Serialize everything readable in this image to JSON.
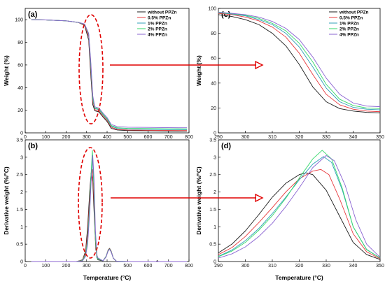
{
  "figure": {
    "x_axis_title_left": "Temperature (°C)",
    "x_axis_title_right": "Temperature (°C)"
  },
  "series_styles": [
    {
      "name": "without PPZn",
      "color": "#1a1a1a"
    },
    {
      "name": "0.5% PPZn",
      "color": "#e8383d"
    },
    {
      "name": "1% PPZn",
      "color": "#2f9fb8"
    },
    {
      "name": "2% PPZn",
      "color": "#33d96a"
    },
    {
      "name": "4% PPZn",
      "color": "#8a63d2"
    }
  ],
  "annotations": {
    "ellipse_color": "#e00000",
    "arrow_color": "#e00000"
  },
  "chart_data": [
    {
      "panel": "(a)",
      "type": "line",
      "title": "",
      "xlabel": "",
      "ylabel": "Weight (%)",
      "xlim": [
        0,
        800
      ],
      "ylim": [
        0,
        110
      ],
      "xticks": [
        0,
        100,
        200,
        300,
        400,
        500,
        600,
        700,
        800
      ],
      "yticks": [
        0,
        20,
        40,
        60,
        80,
        100
      ],
      "legend": "top-right",
      "series": [
        {
          "name": "without PPZn",
          "x": [
            30,
            100,
            200,
            260,
            290,
            310,
            320,
            330,
            340,
            360,
            380,
            400,
            420,
            450,
            500,
            600,
            700,
            790
          ],
          "y": [
            100,
            99.8,
            99,
            97.5,
            95,
            82,
            52,
            25,
            19.5,
            18.5,
            14,
            10,
            4,
            2.5,
            2,
            1.8,
            1.6,
            1.5
          ]
        },
        {
          "name": "0.5% PPZn",
          "x": [
            30,
            100,
            200,
            260,
            290,
            310,
            320,
            330,
            340,
            360,
            380,
            400,
            420,
            450,
            500,
            600,
            700,
            790
          ],
          "y": [
            100,
            99.8,
            99,
            97.5,
            95.5,
            85,
            57,
            28,
            20.5,
            19.5,
            15,
            11,
            5,
            3,
            2.5,
            2.3,
            2.1,
            2
          ]
        },
        {
          "name": "1% PPZn",
          "x": [
            30,
            100,
            200,
            260,
            290,
            310,
            320,
            330,
            340,
            360,
            380,
            400,
            420,
            450,
            500,
            600,
            700,
            790
          ],
          "y": [
            100,
            99.8,
            99,
            97.6,
            96,
            87,
            60,
            30,
            21.5,
            20.5,
            16,
            12,
            6,
            3.8,
            3.3,
            3.1,
            3,
            2.9
          ]
        },
        {
          "name": "2% PPZn",
          "x": [
            30,
            100,
            200,
            260,
            290,
            310,
            320,
            330,
            340,
            360,
            380,
            400,
            420,
            450,
            500,
            600,
            700,
            790
          ],
          "y": [
            100,
            99.8,
            99,
            97.6,
            96,
            87.5,
            62,
            31,
            22,
            21,
            16.5,
            12.5,
            6.5,
            4.5,
            4,
            3.8,
            3.6,
            3.5
          ]
        },
        {
          "name": "4% PPZn",
          "x": [
            30,
            100,
            200,
            260,
            290,
            310,
            320,
            330,
            340,
            360,
            380,
            400,
            420,
            450,
            500,
            600,
            700,
            790
          ],
          "y": [
            100,
            99.8,
            99,
            97.7,
            96.2,
            88,
            64,
            33,
            23,
            22,
            17.5,
            13.5,
            7.5,
            5.5,
            5,
            4.8,
            4.6,
            4.5
          ]
        }
      ]
    },
    {
      "panel": "(c)",
      "type": "line",
      "title": "",
      "xlabel": "",
      "ylabel": "Weight (%)",
      "xlim": [
        290,
        350
      ],
      "ylim": [
        0,
        100
      ],
      "xticks": [
        290,
        300,
        310,
        320,
        330,
        340,
        350
      ],
      "yticks": [
        0,
        20,
        40,
        60,
        80,
        100
      ],
      "legend": "top-right",
      "series": [
        {
          "name": "without PPZn",
          "x": [
            290,
            295,
            300,
            305,
            310,
            315,
            320,
            325,
            330,
            335,
            340,
            345,
            350
          ],
          "y": [
            95,
            93.5,
            91,
            87,
            80,
            70,
            55,
            37,
            25,
            19.5,
            17.5,
            16.5,
            16
          ]
        },
        {
          "name": "0.5% PPZn",
          "x": [
            290,
            295,
            300,
            305,
            310,
            315,
            320,
            325,
            330,
            335,
            340,
            345,
            350
          ],
          "y": [
            96,
            95,
            93,
            90,
            85,
            77,
            64,
            47,
            31,
            22.5,
            19,
            17.5,
            17
          ]
        },
        {
          "name": "1% PPZn",
          "x": [
            290,
            295,
            300,
            305,
            310,
            315,
            320,
            325,
            330,
            335,
            340,
            345,
            350
          ],
          "y": [
            96.5,
            95.5,
            94,
            91,
            87,
            80,
            69,
            53,
            36,
            25,
            20.5,
            19,
            18.5
          ]
        },
        {
          "name": "2% PPZn",
          "x": [
            290,
            295,
            300,
            305,
            310,
            315,
            320,
            325,
            330,
            335,
            340,
            345,
            350
          ],
          "y": [
            96.5,
            95.8,
            94.5,
            92,
            88,
            82,
            72,
            57,
            39,
            27,
            22,
            20,
            19.5
          ]
        },
        {
          "name": "4% PPZn",
          "x": [
            290,
            295,
            300,
            305,
            310,
            315,
            320,
            325,
            330,
            335,
            340,
            345,
            350
          ],
          "y": [
            97,
            96,
            95,
            93,
            89.5,
            84,
            75,
            61,
            44,
            31,
            24,
            21.5,
            21
          ]
        }
      ]
    },
    {
      "panel": "(b)",
      "type": "line",
      "title": "",
      "xlabel": "Temperature (°C)",
      "ylabel": "Derivative weight (%/°C)",
      "xlim": [
        0,
        800
      ],
      "ylim": [
        0,
        3.5
      ],
      "xticks": [
        0,
        100,
        200,
        300,
        400,
        500,
        600,
        700,
        800
      ],
      "yticks": [
        0,
        0.5,
        1,
        1.5,
        2,
        2.5,
        3,
        3.5
      ],
      "legend": "none",
      "series": [
        {
          "name": "without PPZn",
          "x": [
            30,
            250,
            280,
            295,
            305,
            315,
            322,
            330,
            338,
            345,
            355,
            380,
            395,
            405,
            412,
            420,
            430,
            445,
            500,
            600,
            640,
            645,
            650,
            790
          ],
          "y": [
            0,
            0,
            0.05,
            0.3,
            1.0,
            2.0,
            2.55,
            2.3,
            1.2,
            0.35,
            0.05,
            0.02,
            0.15,
            0.33,
            0.38,
            0.3,
            0.1,
            0.01,
            0,
            0,
            0,
            0.03,
            0,
            0
          ]
        },
        {
          "name": "0.5% PPZn",
          "x": [
            30,
            250,
            280,
            295,
            305,
            315,
            322,
            328,
            335,
            342,
            350,
            380,
            395,
            405,
            412,
            420,
            430,
            445,
            500,
            790
          ],
          "y": [
            0,
            0,
            0.04,
            0.25,
            0.8,
            1.8,
            2.45,
            2.65,
            1.9,
            0.7,
            0.1,
            0.02,
            0.14,
            0.32,
            0.37,
            0.29,
            0.1,
            0.01,
            0,
            0
          ]
        },
        {
          "name": "1% PPZn",
          "x": [
            30,
            250,
            280,
            295,
            305,
            315,
            322,
            329,
            335,
            342,
            350,
            380,
            395,
            405,
            412,
            420,
            430,
            445,
            500,
            790
          ],
          "y": [
            0,
            0,
            0.03,
            0.2,
            0.65,
            1.6,
            2.5,
            3.0,
            2.2,
            0.8,
            0.1,
            0.02,
            0.14,
            0.31,
            0.36,
            0.28,
            0.1,
            0.01,
            0,
            0
          ]
        },
        {
          "name": "2% PPZn",
          "x": [
            30,
            250,
            280,
            295,
            305,
            315,
            322,
            328,
            335,
            342,
            350,
            380,
            395,
            405,
            412,
            420,
            430,
            445,
            500,
            790
          ],
          "y": [
            0,
            0,
            0.03,
            0.2,
            0.6,
            1.55,
            2.55,
            3.2,
            2.3,
            0.8,
            0.1,
            0.02,
            0.14,
            0.31,
            0.36,
            0.28,
            0.1,
            0.01,
            0,
            0
          ]
        },
        {
          "name": "4% PPZn",
          "x": [
            30,
            250,
            280,
            295,
            305,
            315,
            323,
            330,
            336,
            343,
            351,
            380,
            395,
            405,
            412,
            420,
            430,
            445,
            500,
            790
          ],
          "y": [
            0,
            0,
            0.02,
            0.15,
            0.5,
            1.4,
            2.4,
            3.05,
            2.4,
            0.9,
            0.12,
            0.02,
            0.13,
            0.3,
            0.35,
            0.27,
            0.1,
            0.01,
            0,
            0
          ]
        }
      ]
    },
    {
      "panel": "(d)",
      "type": "line",
      "title": "",
      "xlabel": "Temperature (°C)",
      "ylabel": "Derivative weight (%/°C)",
      "xlim": [
        290,
        350
      ],
      "ylim": [
        0,
        3.5
      ],
      "xticks": [
        290,
        300,
        310,
        320,
        330,
        340,
        350
      ],
      "yticks": [
        0,
        0.5,
        1,
        1.5,
        2,
        2.5,
        3,
        3.5
      ],
      "legend": "none",
      "series": [
        {
          "name": "without PPZn",
          "x": [
            290,
            295,
            300,
            305,
            310,
            315,
            320,
            322.5,
            325,
            330,
            335,
            340,
            345,
            350
          ],
          "y": [
            0.25,
            0.5,
            0.88,
            1.35,
            1.85,
            2.25,
            2.5,
            2.55,
            2.5,
            2.05,
            1.3,
            0.55,
            0.2,
            0.06
          ]
        },
        {
          "name": "0.5% PPZn",
          "x": [
            290,
            295,
            300,
            305,
            310,
            315,
            320,
            325,
            328,
            331,
            335,
            340,
            345,
            350
          ],
          "y": [
            0.2,
            0.4,
            0.72,
            1.12,
            1.55,
            2.0,
            2.38,
            2.6,
            2.65,
            2.5,
            1.8,
            0.8,
            0.28,
            0.08
          ]
        },
        {
          "name": "1% PPZn",
          "x": [
            290,
            295,
            300,
            305,
            310,
            315,
            320,
            325,
            329,
            332,
            336,
            340,
            345,
            350
          ],
          "y": [
            0.15,
            0.33,
            0.6,
            0.95,
            1.38,
            1.85,
            2.35,
            2.8,
            3.02,
            2.85,
            2.05,
            1.0,
            0.35,
            0.1
          ]
        },
        {
          "name": "2% PPZn",
          "x": [
            290,
            295,
            300,
            305,
            310,
            315,
            320,
            325,
            328.5,
            332,
            336,
            340,
            345,
            350
          ],
          "y": [
            0.14,
            0.3,
            0.55,
            0.9,
            1.32,
            1.82,
            2.4,
            2.95,
            3.2,
            2.95,
            2.1,
            1.0,
            0.34,
            0.1
          ]
        },
        {
          "name": "4% PPZn",
          "x": [
            290,
            295,
            300,
            305,
            310,
            315,
            320,
            325,
            330,
            333,
            337,
            341,
            345,
            350
          ],
          "y": [
            0.1,
            0.22,
            0.42,
            0.72,
            1.1,
            1.58,
            2.12,
            2.7,
            3.05,
            2.9,
            2.2,
            1.2,
            0.5,
            0.12
          ]
        }
      ]
    }
  ]
}
